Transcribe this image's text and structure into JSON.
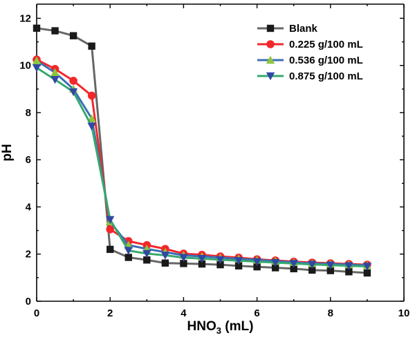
{
  "chart_data": {
    "type": "line",
    "xlabel": "HNO",
    "xlabel_sub": "3",
    "xlabel_suffix": " (mL)",
    "ylabel": "pH",
    "xlim": [
      0,
      10
    ],
    "ylim": [
      0,
      12.6
    ],
    "xticks": [
      0,
      2,
      4,
      6,
      8,
      10
    ],
    "yticks": [
      0,
      2,
      4,
      6,
      8,
      10,
      12
    ],
    "grid": false,
    "legend_position": "top-right",
    "x": [
      0,
      0.5,
      1,
      1.5,
      2,
      2.5,
      3,
      3.5,
      4,
      4.5,
      5,
      5.5,
      6,
      6.5,
      7,
      7.5,
      8,
      8.5,
      9
    ],
    "series": [
      {
        "name": "Blank",
        "color": "#666666",
        "markerColor": "#1a1a1a",
        "marker": "square",
        "values": [
          11.58,
          11.47,
          11.26,
          10.82,
          2.2,
          1.86,
          1.75,
          1.62,
          1.6,
          1.58,
          1.55,
          1.5,
          1.46,
          1.42,
          1.38,
          1.32,
          1.3,
          1.25,
          1.2
        ]
      },
      {
        "name": "0.225 g/100 mL",
        "color": "#f2272b",
        "markerColor": "#f2272b",
        "marker": "circle",
        "values": [
          10.25,
          9.85,
          9.35,
          8.72,
          3.05,
          2.55,
          2.38,
          2.22,
          2.02,
          1.97,
          1.9,
          1.85,
          1.78,
          1.73,
          1.68,
          1.64,
          1.61,
          1.58,
          1.55
        ]
      },
      {
        "name": "0.536 g/100 mL",
        "color": "#3c6fb4",
        "markerColor": "#8cc63f",
        "marker": "triangle-up",
        "values": [
          10.2,
          9.7,
          9.0,
          7.75,
          3.38,
          2.38,
          2.22,
          2.08,
          1.95,
          1.9,
          1.85,
          1.8,
          1.75,
          1.7,
          1.65,
          1.6,
          1.58,
          1.55,
          1.52
        ]
      },
      {
        "name": "0.875 g/100 mL",
        "color": "#35a86e",
        "markerColor": "#3148a3",
        "marker": "triangle-down",
        "values": [
          9.9,
          9.4,
          8.88,
          7.42,
          3.46,
          2.15,
          2.02,
          1.95,
          1.85,
          1.81,
          1.76,
          1.72,
          1.68,
          1.64,
          1.6,
          1.56,
          1.53,
          1.5,
          1.48
        ]
      }
    ]
  }
}
